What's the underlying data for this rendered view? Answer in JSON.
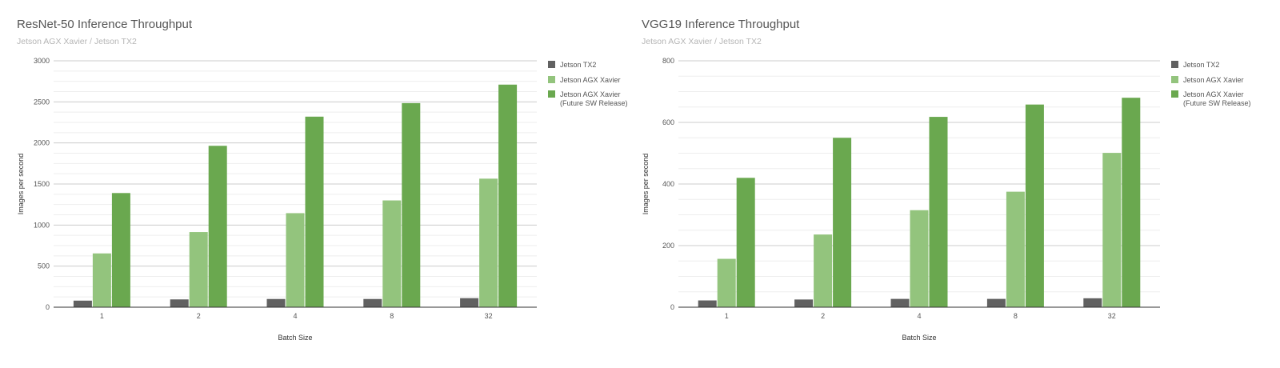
{
  "chart_data": [
    {
      "type": "bar",
      "title": "ResNet-50 Inference Throughput",
      "subtitle": "Jetson AGX Xavier / Jetson TX2",
      "xlabel": "Batch Size",
      "ylabel": "Images per second",
      "ylim": [
        0,
        3000
      ],
      "yticks": [
        0,
        500,
        1000,
        1500,
        2000,
        2500,
        3000
      ],
      "minor_grid_step": 125,
      "grid": true,
      "legend_position": "right",
      "categories": [
        "1",
        "2",
        "4",
        "8",
        "32"
      ],
      "series": [
        {
          "name": "Jetson TX2",
          "color": "#616161",
          "values": [
            80,
            95,
            100,
            100,
            110
          ]
        },
        {
          "name": "Jetson AGX Xavier",
          "color": "#93c47d",
          "values": [
            655,
            915,
            1145,
            1300,
            1565
          ]
        },
        {
          "name": "Jetson AGX Xavier (Future SW Release)",
          "legend_lines": [
            "Jetson AGX Xavier",
            "(Future SW Release)"
          ],
          "color": "#6aa84f",
          "values": [
            1390,
            1965,
            2320,
            2485,
            2710
          ]
        }
      ]
    },
    {
      "type": "bar",
      "title": "VGG19 Inference Throughput",
      "subtitle": "Jetson AGX Xavier / Jetson TX2",
      "xlabel": "Batch Size",
      "ylabel": "Images per second",
      "ylim": [
        0,
        800
      ],
      "yticks": [
        0,
        200,
        400,
        600,
        800
      ],
      "minor_grid_step": 50,
      "grid": true,
      "legend_position": "right",
      "categories": [
        "1",
        "2",
        "4",
        "8",
        "32"
      ],
      "series": [
        {
          "name": "Jetson TX2",
          "color": "#616161",
          "values": [
            22,
            25,
            27,
            27,
            29
          ]
        },
        {
          "name": "Jetson AGX Xavier",
          "color": "#93c47d",
          "values": [
            157,
            236,
            315,
            375,
            501
          ]
        },
        {
          "name": "Jetson AGX Xavier (Future SW Release)",
          "legend_lines": [
            "Jetson AGX Xavier",
            "(Future SW Release)"
          ],
          "color": "#6aa84f",
          "values": [
            420,
            550,
            618,
            658,
            680
          ]
        }
      ]
    }
  ]
}
